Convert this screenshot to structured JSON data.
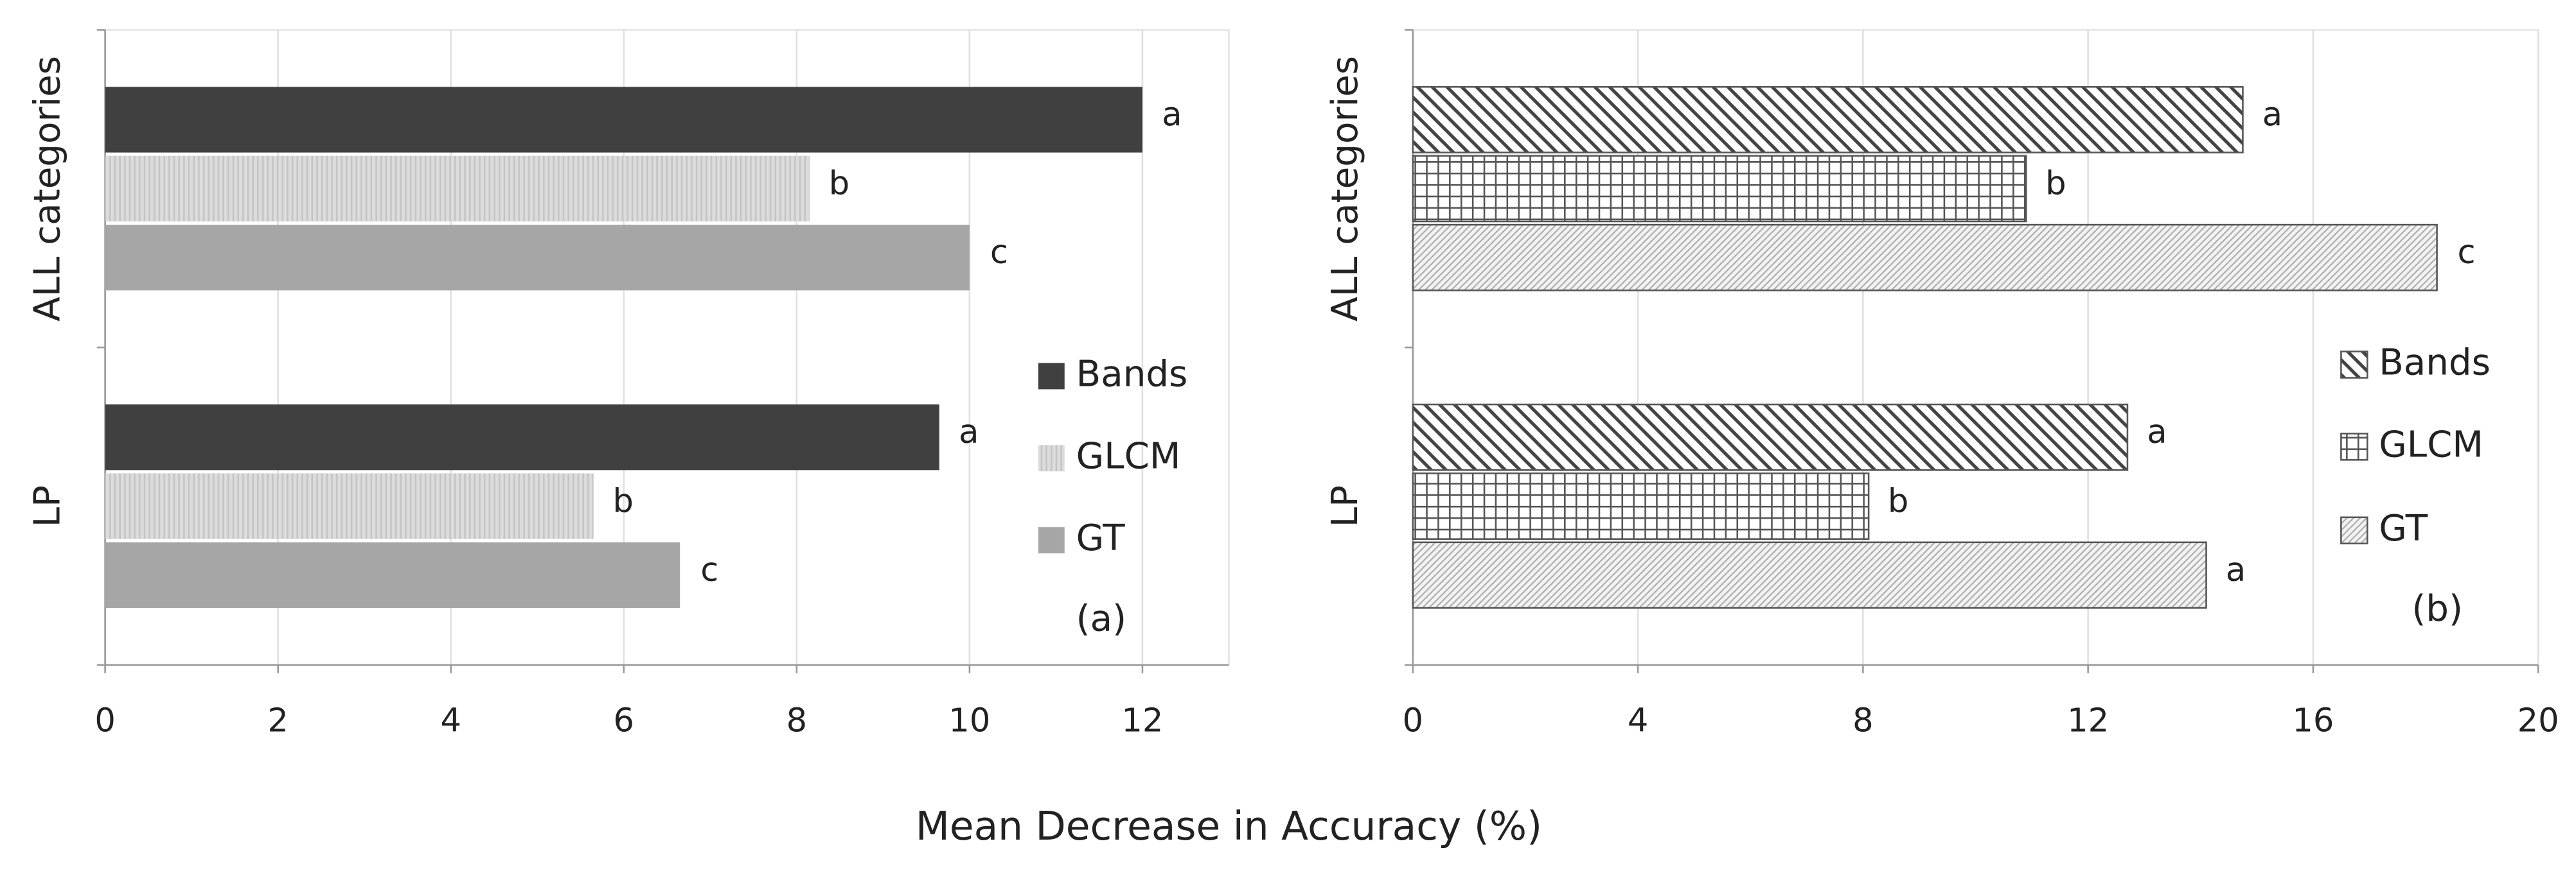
{
  "chart_data": [
    {
      "type": "bar",
      "orientation": "horizontal",
      "panel": "(a)",
      "categories": [
        "ALL categories",
        "LP"
      ],
      "series": [
        {
          "name": "Bands",
          "color": "#404040",
          "values": [
            12.0,
            9.65
          ],
          "letters": [
            "a",
            "a"
          ]
        },
        {
          "name": "GLCM",
          "color": "#d9d9d9",
          "pattern": "vertical",
          "values": [
            8.15,
            5.65
          ],
          "letters": [
            "b",
            "b"
          ]
        },
        {
          "name": "GT",
          "color": "#a6a6a6",
          "values": [
            10.0,
            6.65
          ],
          "letters": [
            "c",
            "c"
          ]
        }
      ],
      "xlim": [
        0,
        13
      ],
      "xticks": [
        0,
        2,
        4,
        6,
        8,
        10,
        12
      ],
      "grid": true,
      "legend": "right"
    },
    {
      "type": "bar",
      "orientation": "horizontal",
      "panel": "(b)",
      "categories": [
        "ALL categories",
        "LP"
      ],
      "series": [
        {
          "name": "Bands",
          "color": "#555555",
          "pattern": "back",
          "values": [
            14.75,
            12.7
          ],
          "letters": [
            "a",
            "a"
          ]
        },
        {
          "name": "GLCM",
          "color": "#555555",
          "pattern": "grid",
          "values": [
            10.9,
            8.1
          ],
          "letters": [
            "b",
            "b"
          ]
        },
        {
          "name": "GT",
          "color": "#555555",
          "pattern": "fwd",
          "values": [
            18.2,
            14.1
          ],
          "letters": [
            "c",
            "a"
          ]
        }
      ],
      "xlim": [
        0,
        20
      ],
      "xticks": [
        0,
        4,
        8,
        12,
        16,
        20
      ],
      "grid": true,
      "legend": "right"
    }
  ],
  "xlabel": "Mean Decrease in Accuracy (%)"
}
